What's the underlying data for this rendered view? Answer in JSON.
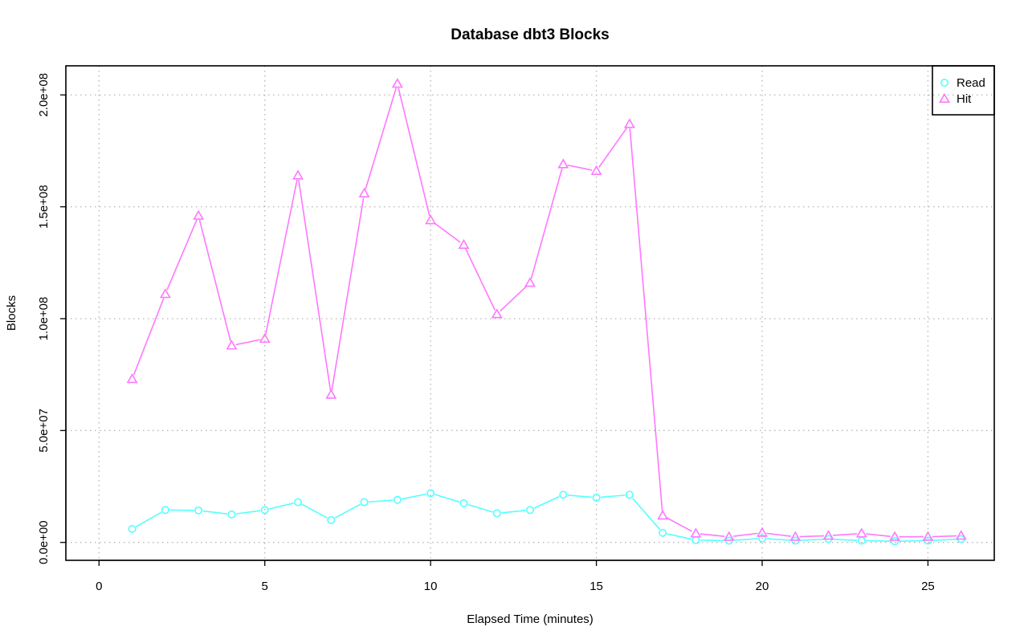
{
  "chart_data": {
    "type": "line",
    "title": "Database dbt3 Blocks",
    "xlabel": "Elapsed Time (minutes)",
    "ylabel": "Blocks",
    "xlim": [
      -1,
      27
    ],
    "ylim": [
      -8000000,
      213000000
    ],
    "x_ticks": [
      0,
      5,
      10,
      15,
      20,
      25
    ],
    "x_tick_labels": [
      "0",
      "5",
      "10",
      "15",
      "20",
      "25"
    ],
    "y_ticks": [
      0,
      50000000,
      100000000,
      150000000,
      200000000
    ],
    "y_tick_labels": [
      "0.0e+00",
      "5.0e+07",
      "1.0e+08",
      "1.5e+08",
      "2.0e+08"
    ],
    "grid": true,
    "legend_position": "top-right",
    "x": [
      1,
      2,
      3,
      4,
      5,
      6,
      7,
      8,
      9,
      10,
      11,
      12,
      13,
      14,
      15,
      16,
      17,
      18,
      19,
      20,
      21,
      22,
      23,
      24,
      25,
      26
    ],
    "series": [
      {
        "name": "Read",
        "color": "#55ffff",
        "marker": "circle",
        "values": [
          6000000,
          14500000,
          14300000,
          12500000,
          14500000,
          18000000,
          10000000,
          18000000,
          19000000,
          22000000,
          17500000,
          13000000,
          14500000,
          21300000,
          20000000,
          21300000,
          4300000,
          1000000,
          800000,
          1800000,
          800000,
          1500000,
          800000,
          500000,
          800000,
          1500000
        ]
      },
      {
        "name": "Hit",
        "color": "#ff77ff",
        "marker": "triangle",
        "values": [
          73000000,
          111000000,
          146000000,
          88000000,
          91000000,
          164000000,
          66000000,
          156000000,
          205000000,
          144000000,
          133000000,
          102000000,
          116000000,
          169000000,
          166000000,
          187000000,
          12000000,
          4000000,
          2500000,
          4300000,
          2500000,
          3000000,
          4000000,
          2500000,
          2500000,
          3000000
        ]
      }
    ]
  }
}
